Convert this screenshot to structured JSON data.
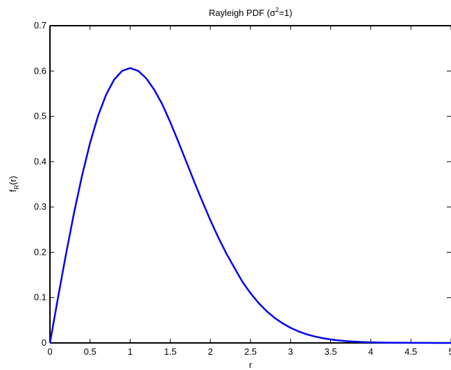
{
  "chart_data": {
    "type": "line",
    "title": "Rayleigh PDF (σ²=1)",
    "title_parts": {
      "prefix": "Rayleigh PDF (σ",
      "superscript": "2",
      "suffix": "=1)"
    },
    "xlabel": "r",
    "ylabel": "f_R(r)",
    "ylabel_parts": {
      "base": "f",
      "subscript": "R",
      "suffix": "(r)"
    },
    "xlim": [
      0,
      5
    ],
    "ylim": [
      0,
      0.7
    ],
    "x_ticks": [
      0,
      0.5,
      1,
      1.5,
      2,
      2.5,
      3,
      3.5,
      4,
      4.5,
      5
    ],
    "x_tick_labels": [
      "0",
      "0.5",
      "1",
      "1.5",
      "2",
      "2.5",
      "3",
      "3.5",
      "4",
      "4.5",
      "5"
    ],
    "y_ticks": [
      0,
      0.1,
      0.2,
      0.3,
      0.4,
      0.5,
      0.6,
      0.7
    ],
    "y_tick_labels": [
      "0",
      "0.1",
      "0.2",
      "0.3",
      "0.4",
      "0.5",
      "0.6",
      "0.7"
    ],
    "grid": false,
    "legend": "none",
    "series": [
      {
        "color": "#0000ee",
        "x": [
          0,
          0.1,
          0.2,
          0.3,
          0.4,
          0.5,
          0.6,
          0.7,
          0.8,
          0.9,
          1.0,
          1.1,
          1.2,
          1.3,
          1.4,
          1.5,
          1.6,
          1.7,
          1.8,
          1.9,
          2.0,
          2.1,
          2.2,
          2.3,
          2.4,
          2.5,
          2.6,
          2.7,
          2.8,
          2.9,
          3.0,
          3.1,
          3.2,
          3.3,
          3.4,
          3.5,
          3.6,
          3.7,
          3.8,
          3.9,
          4.0,
          4.1,
          4.2,
          4.3,
          4.4,
          4.5,
          4.6,
          4.7,
          4.8,
          4.9,
          5.0
        ],
        "y": [
          0,
          0.0995,
          0.196,
          0.2869,
          0.3692,
          0.4412,
          0.5012,
          0.5477,
          0.5809,
          0.6003,
          0.6065,
          0.6004,
          0.584,
          0.5587,
          0.5267,
          0.487,
          0.4441,
          0.3997,
          0.3551,
          0.3122,
          0.2707,
          0.2323,
          0.1971,
          0.1656,
          0.1348,
          0.1098,
          0.0883,
          0.0704,
          0.0554,
          0.0433,
          0.0333,
          0.0254,
          0.0191,
          0.0143,
          0.0105,
          0.0077,
          0.0055,
          0.0039,
          0.0028,
          0.0019,
          0.0013,
          0.0009,
          0.0006,
          0.0004,
          0.0003,
          0.0002,
          0.0001,
          0.0001,
          0.0,
          0.0,
          0.0
        ]
      }
    ]
  }
}
